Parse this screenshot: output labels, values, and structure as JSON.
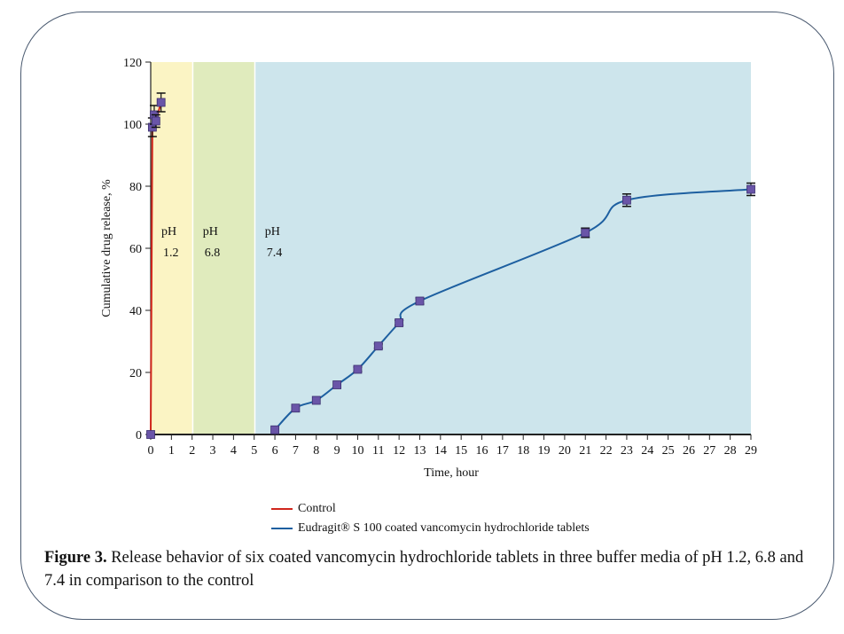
{
  "chart_data": {
    "type": "line",
    "title": "",
    "xlabel": "Time, hour",
    "ylabel": "Cumulative drug release, %",
    "xlim": [
      0,
      29
    ],
    "ylim": [
      0,
      120
    ],
    "xticks": [
      0,
      1,
      2,
      3,
      4,
      5,
      6,
      7,
      8,
      9,
      10,
      11,
      12,
      13,
      14,
      15,
      16,
      17,
      18,
      19,
      20,
      21,
      22,
      23,
      24,
      25,
      26,
      27,
      28,
      29
    ],
    "yticks": [
      0,
      20,
      40,
      60,
      80,
      100,
      120
    ],
    "grid": false,
    "regions": [
      {
        "label_top": "pH",
        "label_bottom": "1.2",
        "x_start": 0,
        "x_end": 2,
        "color": "#fbf4c4"
      },
      {
        "label_top": "pH",
        "label_bottom": "6.8",
        "x_start": 2,
        "x_end": 5,
        "color": "#e0ebbd"
      },
      {
        "label_top": "pH",
        "label_bottom": "7.4",
        "x_start": 5,
        "x_end": 29,
        "color": "#cde5ec"
      }
    ],
    "series": [
      {
        "name": "Control",
        "color": "#d0261c",
        "x": [
          0,
          0.08,
          0.17,
          0.25,
          0.5
        ],
        "y": [
          0,
          99,
          103,
          101,
          107
        ],
        "error": [
          0,
          3,
          3,
          2,
          3
        ]
      },
      {
        "name": "Eudragit® S 100 coated vancomycin hydrochloride tablets",
        "color": "#1d5fa0",
        "x": [
          6,
          7,
          8,
          9,
          10,
          11,
          12,
          13,
          21,
          23,
          29
        ],
        "y": [
          1.5,
          8.5,
          11,
          16,
          21,
          28.5,
          36,
          43,
          65,
          75.5,
          79
        ],
        "error": [
          0.5,
          0.5,
          0.5,
          0.5,
          0.7,
          0.7,
          0.8,
          1,
          1.5,
          2,
          2
        ]
      }
    ],
    "marker_color": "#6a55a8",
    "legend": [
      "Control",
      "Eudragit® S 100 coated vancomycin hydrochloride tablets"
    ],
    "legend_position": "bottom"
  },
  "caption": {
    "label": "Figure 3.",
    "text": " Release behavior of six coated vancomycin hydrochloride tablets in three buffer media of pH 1.2, 6.8 and 7.4 in comparison to the control"
  }
}
